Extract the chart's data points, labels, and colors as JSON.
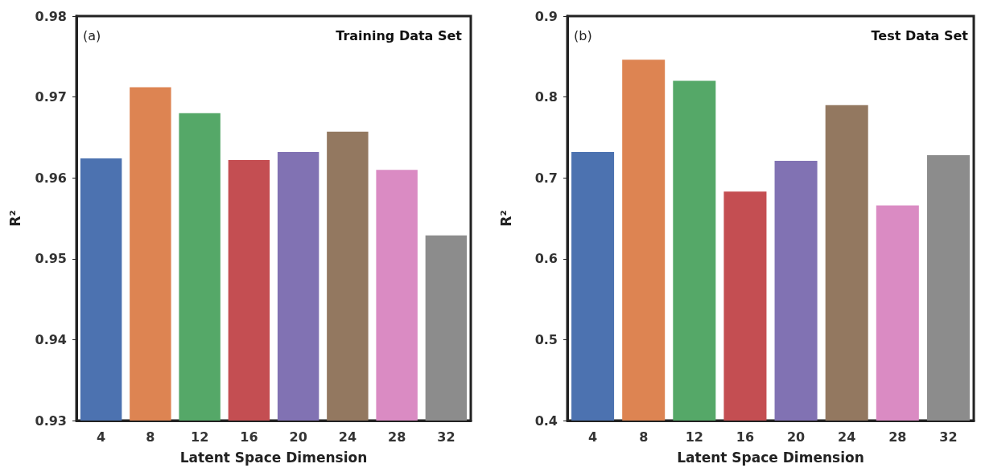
{
  "chart_data": [
    {
      "type": "bar",
      "annotations": [
        "(a)",
        "Training Data Set"
      ],
      "xlabel": "Latent Space Dimension",
      "ylabel": "R²",
      "categories": [
        "4",
        "8",
        "12",
        "16",
        "20",
        "24",
        "28",
        "32"
      ],
      "values": [
        0.9624,
        0.9712,
        0.968,
        0.9622,
        0.9632,
        0.9657,
        0.961,
        0.9529
      ],
      "colors": [
        "#4c72b0",
        "#dd8452",
        "#55a868",
        "#c44e52",
        "#8172b3",
        "#937860",
        "#da8bc3",
        "#8c8c8c"
      ],
      "ylim": [
        0.93,
        0.98
      ],
      "yticks": [
        0.93,
        0.94,
        0.95,
        0.96,
        0.97,
        0.98
      ],
      "grid": false
    },
    {
      "type": "bar",
      "annotations": [
        "(b)",
        "Test Data Set"
      ],
      "xlabel": "Latent Space Dimension",
      "ylabel": "R²",
      "categories": [
        "4",
        "8",
        "12",
        "16",
        "20",
        "24",
        "28",
        "32"
      ],
      "values": [
        0.732,
        0.846,
        0.82,
        0.683,
        0.721,
        0.79,
        0.666,
        0.728
      ],
      "colors": [
        "#4c72b0",
        "#dd8452",
        "#55a868",
        "#c44e52",
        "#8172b3",
        "#937860",
        "#da8bc3",
        "#8c8c8c"
      ],
      "ylim": [
        0.4,
        0.9
      ],
      "yticks": [
        0.4,
        0.5,
        0.6,
        0.7,
        0.8,
        0.9
      ],
      "grid": false
    }
  ]
}
